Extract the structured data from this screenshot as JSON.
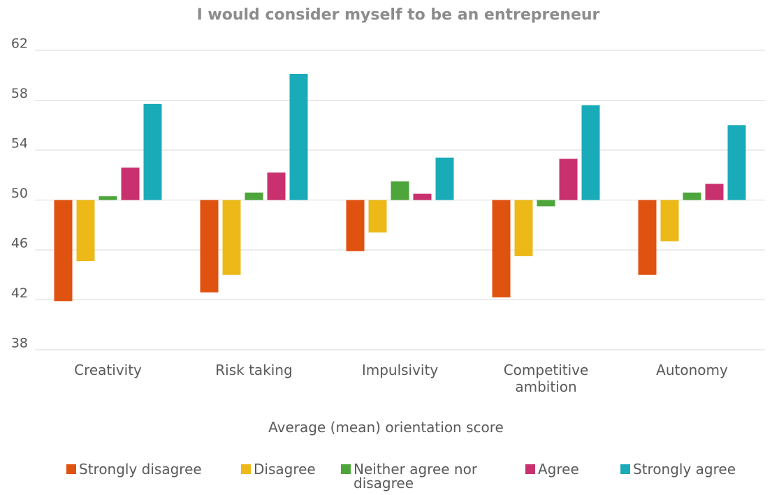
{
  "chart_data": {
    "type": "bar",
    "title": "I would consider myself to be an entrepreneur",
    "x_label": "Average (mean) orientation score",
    "categories": [
      "Creativity",
      "Risk taking",
      "Impulsivity",
      "Competitive ambition",
      "Autonomy"
    ],
    "series": [
      {
        "name": "Strongly disagree",
        "color": "#e0520f",
        "values": [
          41.9,
          42.6,
          45.9,
          42.2,
          44.0
        ]
      },
      {
        "name": "Disagree",
        "color": "#ecb918",
        "values": [
          45.1,
          44.0,
          47.4,
          45.5,
          46.7
        ]
      },
      {
        "name": "Neither agree nor disagree",
        "color": "#4ea53c",
        "values": [
          50.3,
          50.6,
          51.5,
          49.5,
          50.6
        ]
      },
      {
        "name": "Agree",
        "color": "#c8306e",
        "values": [
          52.6,
          52.2,
          50.5,
          53.3,
          51.3
        ]
      },
      {
        "name": "Strongly agree",
        "color": "#1aabb9",
        "values": [
          57.7,
          60.1,
          53.4,
          57.6,
          56.0
        ]
      }
    ],
    "ylim": [
      38,
      62
    ],
    "yticks": [
      38,
      42,
      46,
      50,
      54,
      58,
      62
    ],
    "x_axis_crosses": 50,
    "grid": true,
    "legend": "bottom"
  }
}
